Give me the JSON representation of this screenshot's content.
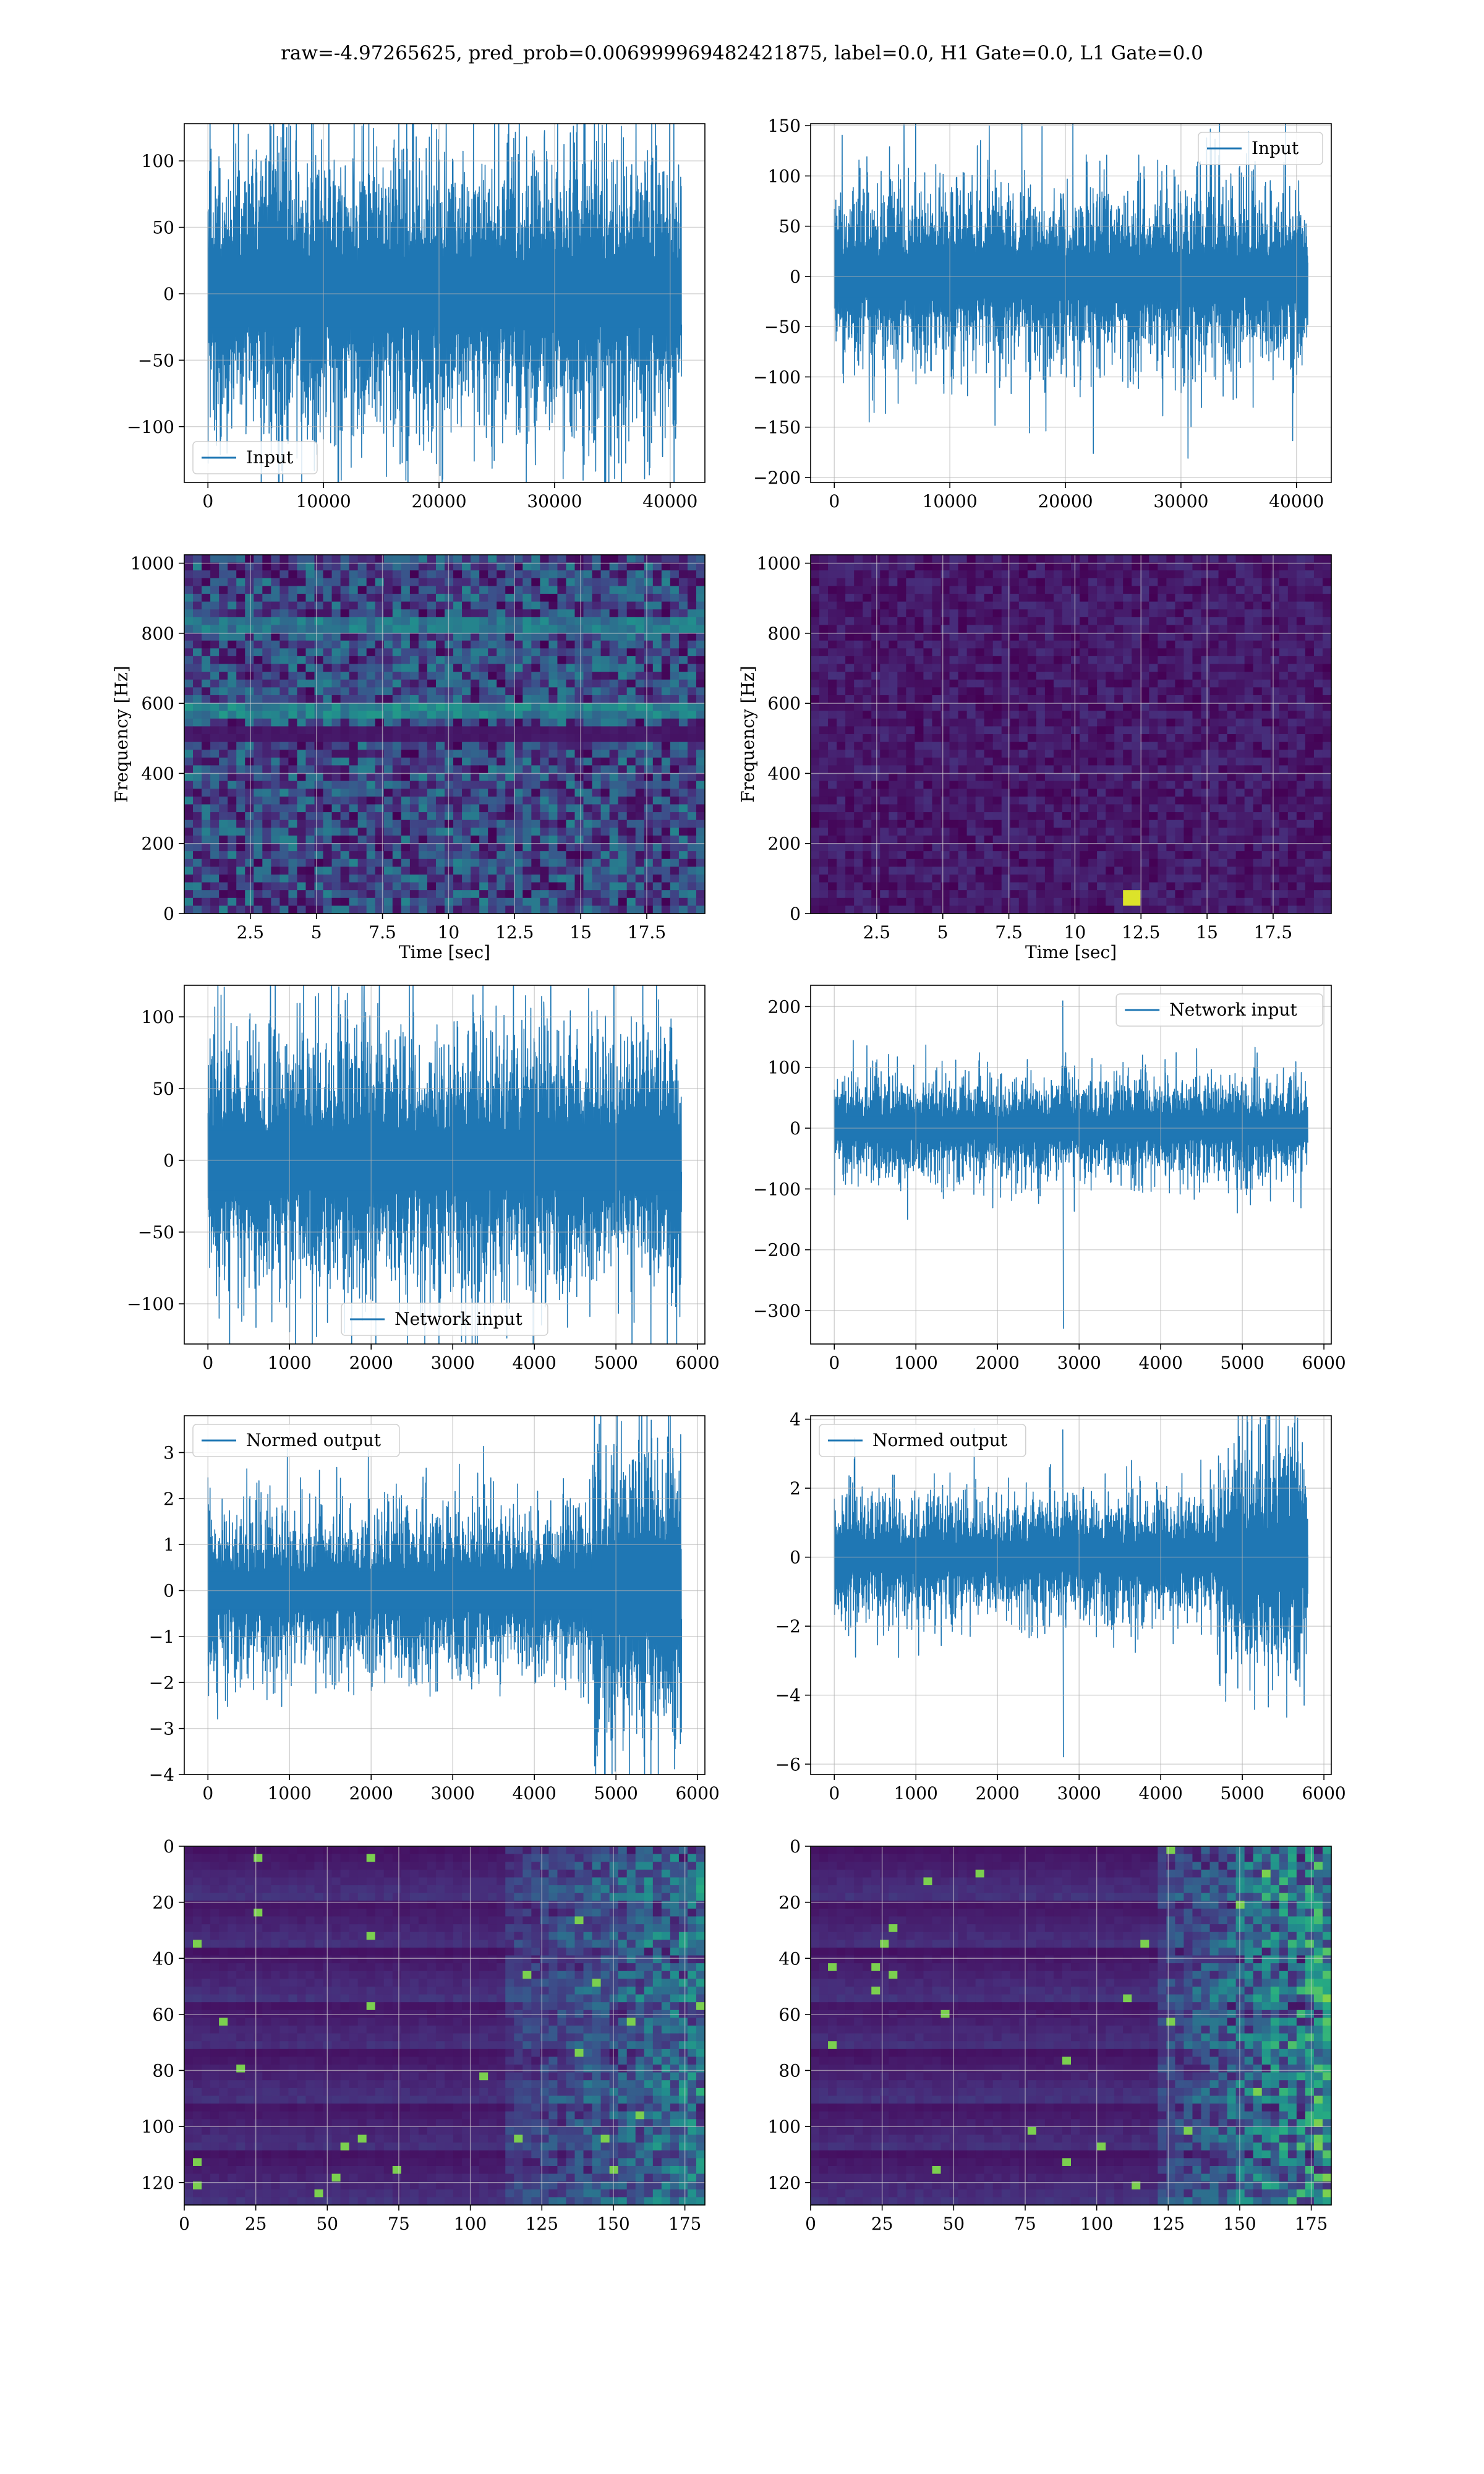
{
  "title": "raw=-4.97265625, pred_prob=0.006999969482421875, label=0.0, H1 Gate=0.0, L1 Gate=0.0",
  "colors": {
    "line": "#1f77b4",
    "grid": "#b0b0b0",
    "viridis_dark": "#440154",
    "viridis_light": "#fde725"
  },
  "chart_data": [
    {
      "id": "h1-input",
      "type": "line",
      "row": 0,
      "col": 0,
      "series": [
        {
          "name": "Input",
          "amp_typical": 60,
          "amp_peak": 130,
          "center": 0,
          "segments": []
        }
      ],
      "x": [
        0,
        40960
      ],
      "xlim": [
        -2048,
        43008
      ],
      "ylim": [
        -142,
        128
      ],
      "xticks": [
        0,
        10000,
        20000,
        30000,
        40000
      ],
      "yticks": [
        -100,
        -50,
        0,
        50,
        100
      ],
      "legend": "lower left",
      "grid": true,
      "xlabel": "",
      "ylabel": ""
    },
    {
      "id": "l1-input",
      "type": "line",
      "row": 0,
      "col": 1,
      "series": [
        {
          "name": "Input",
          "amp_typical": 50,
          "amp_peak": 187,
          "center": 0,
          "segments": []
        }
      ],
      "x": [
        0,
        40960
      ],
      "xlim": [
        -2048,
        43008
      ],
      "ylim": [
        -205,
        152
      ],
      "xticks": [
        0,
        10000,
        20000,
        30000,
        40000
      ],
      "yticks": [
        -200,
        -150,
        -100,
        -50,
        0,
        50,
        100,
        150
      ],
      "legend": "upper right",
      "grid": true,
      "xlabel": "",
      "ylabel": ""
    },
    {
      "id": "h1-spectrogram",
      "type": "heatmap",
      "row": 1,
      "col": 0,
      "xlim": [
        0,
        19.7
      ],
      "ylim": [
        0,
        1024
      ],
      "xticks": [
        2.5,
        5.0,
        7.5,
        10.0,
        12.5,
        15.0,
        17.5
      ],
      "yticks": [
        0,
        200,
        400,
        600,
        800,
        1000
      ],
      "xlabel": "Time [sec]",
      "ylabel": "Frequency [Hz]",
      "grid": true,
      "intensity": 0.45,
      "bands": [
        {
          "lo": 500,
          "hi": 520,
          "value": 0.08
        },
        {
          "lo": 560,
          "hi": 580,
          "value": 0.55
        },
        {
          "lo": 820,
          "hi": 832,
          "value": 0.5
        }
      ]
    },
    {
      "id": "l1-spectrogram",
      "type": "heatmap",
      "row": 1,
      "col": 1,
      "xlim": [
        0,
        19.7
      ],
      "ylim": [
        0,
        1024
      ],
      "xticks": [
        2.5,
        5.0,
        7.5,
        10.0,
        12.5,
        15.0,
        17.5
      ],
      "yticks": [
        0,
        200,
        400,
        600,
        800,
        1000
      ],
      "xlabel": "Time [sec]",
      "ylabel": "Frequency [Hz]",
      "grid": true,
      "intensity": 0.14,
      "bands": [],
      "hotspot": {
        "t": 12.2,
        "f": 40,
        "value": 0.95
      }
    },
    {
      "id": "h1-network-input",
      "type": "line",
      "row": 2,
      "col": 0,
      "series": [
        {
          "name": "Network input",
          "amp_typical": 50,
          "amp_peak": 118,
          "center": 0,
          "segments": []
        }
      ],
      "x": [
        0,
        5800
      ],
      "xlim": [
        -290,
        6090
      ],
      "ylim": [
        -128,
        122
      ],
      "xticks": [
        0,
        1000,
        2000,
        3000,
        4000,
        5000,
        6000
      ],
      "yticks": [
        -100,
        -50,
        0,
        50,
        100
      ],
      "legend": "lower center",
      "grid": true,
      "xlabel": "",
      "ylabel": ""
    },
    {
      "id": "l1-network-input",
      "type": "line",
      "row": 2,
      "col": 1,
      "series": [
        {
          "name": "Network input",
          "amp_typical": 45,
          "amp_peak": 110,
          "center": 0,
          "spike": {
            "x": 2800,
            "hi": 210,
            "lo": -330
          },
          "segments": []
        }
      ],
      "x": [
        0,
        5800
      ],
      "xlim": [
        -290,
        6090
      ],
      "ylim": [
        -355,
        235
      ],
      "xticks": [
        0,
        1000,
        2000,
        3000,
        4000,
        5000,
        6000
      ],
      "yticks": [
        -300,
        -200,
        -100,
        0,
        100,
        200
      ],
      "legend": "upper right",
      "grid": true,
      "xlabel": "",
      "ylabel": ""
    },
    {
      "id": "h1-normed-output",
      "type": "line",
      "row": 3,
      "col": 0,
      "series": [
        {
          "name": "Normed output",
          "amp_typical": 1.0,
          "amp_peak": 2.2,
          "center": 0,
          "segments": [
            {
              "from": 4700,
              "to": 5800,
              "amp_typical": 2.0,
              "amp_peak": 3.6
            }
          ]
        }
      ],
      "x": [
        0,
        5800
      ],
      "xlim": [
        -290,
        6090
      ],
      "ylim": [
        -4.0,
        3.8
      ],
      "xticks": [
        0,
        1000,
        2000,
        3000,
        4000,
        5000,
        6000
      ],
      "yticks": [
        -4,
        -3,
        -2,
        -1,
        0,
        1,
        2,
        3
      ],
      "legend": "upper left",
      "grid": true,
      "xlabel": "",
      "ylabel": ""
    },
    {
      "id": "l1-normed-output",
      "type": "line",
      "row": 3,
      "col": 1,
      "series": [
        {
          "name": "Normed output",
          "amp_typical": 1.0,
          "amp_peak": 2.0,
          "center": 0,
          "spike": {
            "x": 2800,
            "hi": 3.7,
            "lo": -5.8
          },
          "segments": [
            {
              "from": 4700,
              "to": 5800,
              "amp_typical": 2.0,
              "amp_peak": 3.4
            }
          ]
        }
      ],
      "x": [
        0,
        5800
      ],
      "xlim": [
        -290,
        6090
      ],
      "ylim": [
        -6.3,
        4.1
      ],
      "xticks": [
        0,
        1000,
        2000,
        3000,
        4000,
        5000,
        6000
      ],
      "yticks": [
        -6,
        -4,
        -2,
        0,
        2,
        4
      ],
      "legend": "upper left",
      "grid": true,
      "xlabel": "",
      "ylabel": ""
    },
    {
      "id": "h1-feature-map",
      "type": "heatmap",
      "row": 4,
      "col": 0,
      "rows": 128,
      "cols": 182,
      "xlim": [
        0,
        182
      ],
      "ylim": [
        128,
        0
      ],
      "xticks": [
        0,
        25,
        50,
        75,
        100,
        125,
        150,
        175
      ],
      "yticks": [
        0,
        20,
        40,
        60,
        80,
        100,
        120
      ],
      "grid": true,
      "active_from": 110,
      "intensity": 0.25,
      "xlabel": "",
      "ylabel": ""
    },
    {
      "id": "l1-feature-map",
      "type": "heatmap",
      "row": 4,
      "col": 1,
      "rows": 128,
      "cols": 182,
      "xlim": [
        0,
        182
      ],
      "ylim": [
        128,
        0
      ],
      "xticks": [
        0,
        25,
        50,
        75,
        100,
        125,
        150,
        175
      ],
      "yticks": [
        0,
        20,
        40,
        60,
        80,
        100,
        120
      ],
      "grid": true,
      "active_from": 120,
      "intensity": 0.35,
      "xlabel": "",
      "ylabel": ""
    }
  ]
}
